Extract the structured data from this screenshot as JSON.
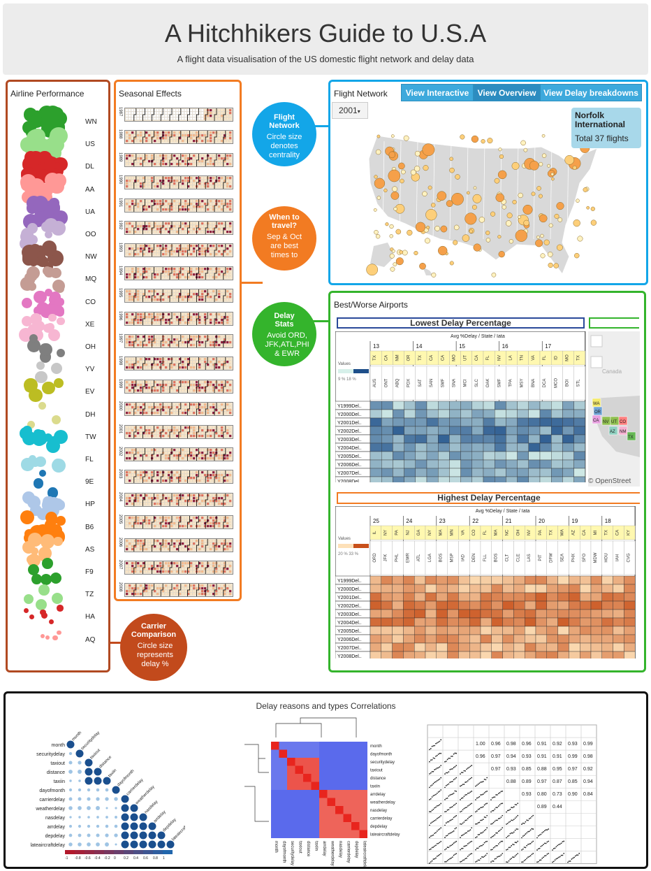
{
  "header": {
    "title": "A Hitchhikers Guide to U.S.A",
    "subtitle": "A flight data visualisation of the US domestic flight network and delay data"
  },
  "airline_panel": {
    "title": "Airline Performance",
    "carriers": [
      "WN",
      "US",
      "DL",
      "AA",
      "UA",
      "OO",
      "NW",
      "MQ",
      "CO",
      "XE",
      "OH",
      "YV",
      "EV",
      "DH",
      "TW",
      "FL",
      "9E",
      "HP",
      "B6",
      "AS",
      "F9",
      "TZ",
      "HA",
      "AQ"
    ]
  },
  "season_panel": {
    "title": "Seasonal Effects",
    "years": [
      "1987",
      "1988",
      "1989",
      "1990",
      "1991",
      "1992",
      "1993",
      "1994",
      "1995",
      "1996",
      "1997",
      "1998",
      "1999",
      "2000",
      "2001",
      "2002",
      "2003",
      "2004",
      "2005",
      "2006",
      "2007",
      "2008"
    ]
  },
  "bubbles": {
    "network": {
      "title": "Flight Network",
      "desc": "Circle size denotes centrality"
    },
    "travel": {
      "title": "When to travel?",
      "desc": "Sep & Oct are best times to"
    },
    "delay": {
      "title": "Delay Stats",
      "desc": "Avoid ORD, JFK,ATL,PHI & EWR"
    },
    "carrier": {
      "title": "Carrier Comparison",
      "desc": "Circle size represents delay %"
    }
  },
  "network_panel": {
    "title": "Flight Network",
    "buttons": [
      "View Interactive",
      "View Overview",
      "View Delay breakdowns"
    ],
    "active_button": "View Overview",
    "year": "2001",
    "tooltip_name": "Norfolk International",
    "tooltip_total": "Total 37 flights"
  },
  "airports_panel": {
    "title": "Best/Worse Airports",
    "lowest": {
      "title": "Lowest Delay Percentage",
      "subtitle": "Avg %Delay / State / Iata",
      "legend_label": "Values",
      "legend_range": "9 %   18 %",
      "groups": [
        "13",
        "14",
        "15",
        "16",
        "17"
      ],
      "states": [
        "TX",
        "CA",
        "NM",
        "OR",
        "TX",
        "CA",
        "CA",
        "MO",
        "UT",
        "CA",
        "FL",
        "NV",
        "LA",
        "TN",
        "VA",
        "FL",
        "ID",
        "MO",
        "TX"
      ],
      "iatas": [
        "AUS",
        "ONT",
        "ABQ",
        "PDX",
        "SAT",
        "SAN",
        "SMF",
        "SNA",
        "MCI",
        "SLC",
        "OAK",
        "SMF",
        "TPA",
        "MSY",
        "BNA",
        "DCA",
        "MCO",
        "BOI",
        "STL"
      ],
      "rows": [
        "Y1999Del..",
        "Y2000Del..",
        "Y2001Del..",
        "Y2002Del..",
        "Y2003Del..",
        "Y2004Del..",
        "Y2005Del..",
        "Y2006Del..",
        "Y2007Del..",
        "Y2008Del.."
      ],
      "map_attribution": "© OpenStreet",
      "map_states": [
        "WA",
        "OR",
        "NV",
        "UT",
        "CO",
        "AZ",
        "NM",
        "CA",
        "TX"
      ],
      "map_country": "Canada"
    },
    "highest": {
      "title": "Highest Delay Percentage",
      "subtitle": "Avg %Delay / State / Iata",
      "legend_label": "Values",
      "legend_range": "20 %   33 %",
      "groups": [
        "25",
        "24",
        "23",
        "22",
        "21",
        "20",
        "19",
        "18"
      ],
      "states": [
        "IL",
        "NY",
        "PA",
        "NJ",
        "GA",
        "NY",
        "MA",
        "MN",
        "VA",
        "CO",
        "FL",
        "MA",
        "NC",
        "OH",
        "NV",
        "PA",
        "TX",
        "WA",
        "AZ",
        "CA",
        "MI",
        "TX",
        "CA",
        "KY"
      ],
      "iatas": [
        "ORD",
        "JFK",
        "PHL",
        "EWR",
        "ATL",
        "LGA",
        "BOS",
        "MSP",
        "IAD",
        "DEN",
        "FLL",
        "BOS",
        "CLT",
        "CLE",
        "LAS",
        "PIT",
        "DFW",
        "SEA",
        "PHX",
        "SFO",
        "MDW",
        "HOU",
        "IAH",
        "CVG"
      ],
      "rows": [
        "Y1999Del..",
        "Y2000Del..",
        "Y2001Del..",
        "Y2002Del..",
        "Y2003Del..",
        "Y2004Del..",
        "Y2005Del..",
        "Y2006Del..",
        "Y2007Del..",
        "Y2008Del.."
      ]
    }
  },
  "corr_panel": {
    "title": "Delay reasons and types Correlations",
    "corrplot_labels": [
      "month",
      "securitydelay",
      "taxiout",
      "distance",
      "taxiin",
      "dayofmonth",
      "carrierdelay",
      "weatherdelay",
      "nasdelay",
      "arrdelay",
      "depdelay",
      "lateaircraftdelay"
    ],
    "corrplot_scale": [
      "-1",
      "-0.8",
      "-0.6",
      "-0.4",
      "-0.2",
      "0",
      "0.2",
      "0.4",
      "0.6",
      "0.8",
      "1"
    ],
    "heatmap_labels": [
      "month",
      "dayofmonth",
      "securitydelay",
      "taxiout",
      "distance",
      "taxiin",
      "arrdelay",
      "weatherdelay",
      "nasdelay",
      "carrierdelay",
      "depdelay",
      "lateaircraftdelay"
    ],
    "pair_values": [
      "1.00",
      "0.96",
      "0.98",
      "0.96",
      "0.91",
      "0.92",
      "0.93",
      "0.99",
      "0.96",
      "0.97",
      "0.94",
      "0.93",
      "0.91",
      "0.91",
      "0.99",
      "0.98",
      "0.97",
      "0.93",
      "0.85",
      "0.88",
      "0.95",
      "0.97",
      "0.92",
      "0.88",
      "0.89",
      "0.97",
      "0.87",
      "0.85",
      "0.94",
      "0.93",
      "0.80",
      "0.73",
      "0.90",
      "0.84",
      "0.89",
      "0.44"
    ]
  },
  "colors": {
    "airline_border": "#b14a22",
    "season_border": "#f27b22",
    "network_border": "#13a6e8",
    "airports_border": "#34b42c",
    "carrier_bubble": "#c24a1c",
    "network_bubble": "#13a6e8",
    "travel_bubble": "#f27b22",
    "delay_bubble": "#34b42c"
  }
}
